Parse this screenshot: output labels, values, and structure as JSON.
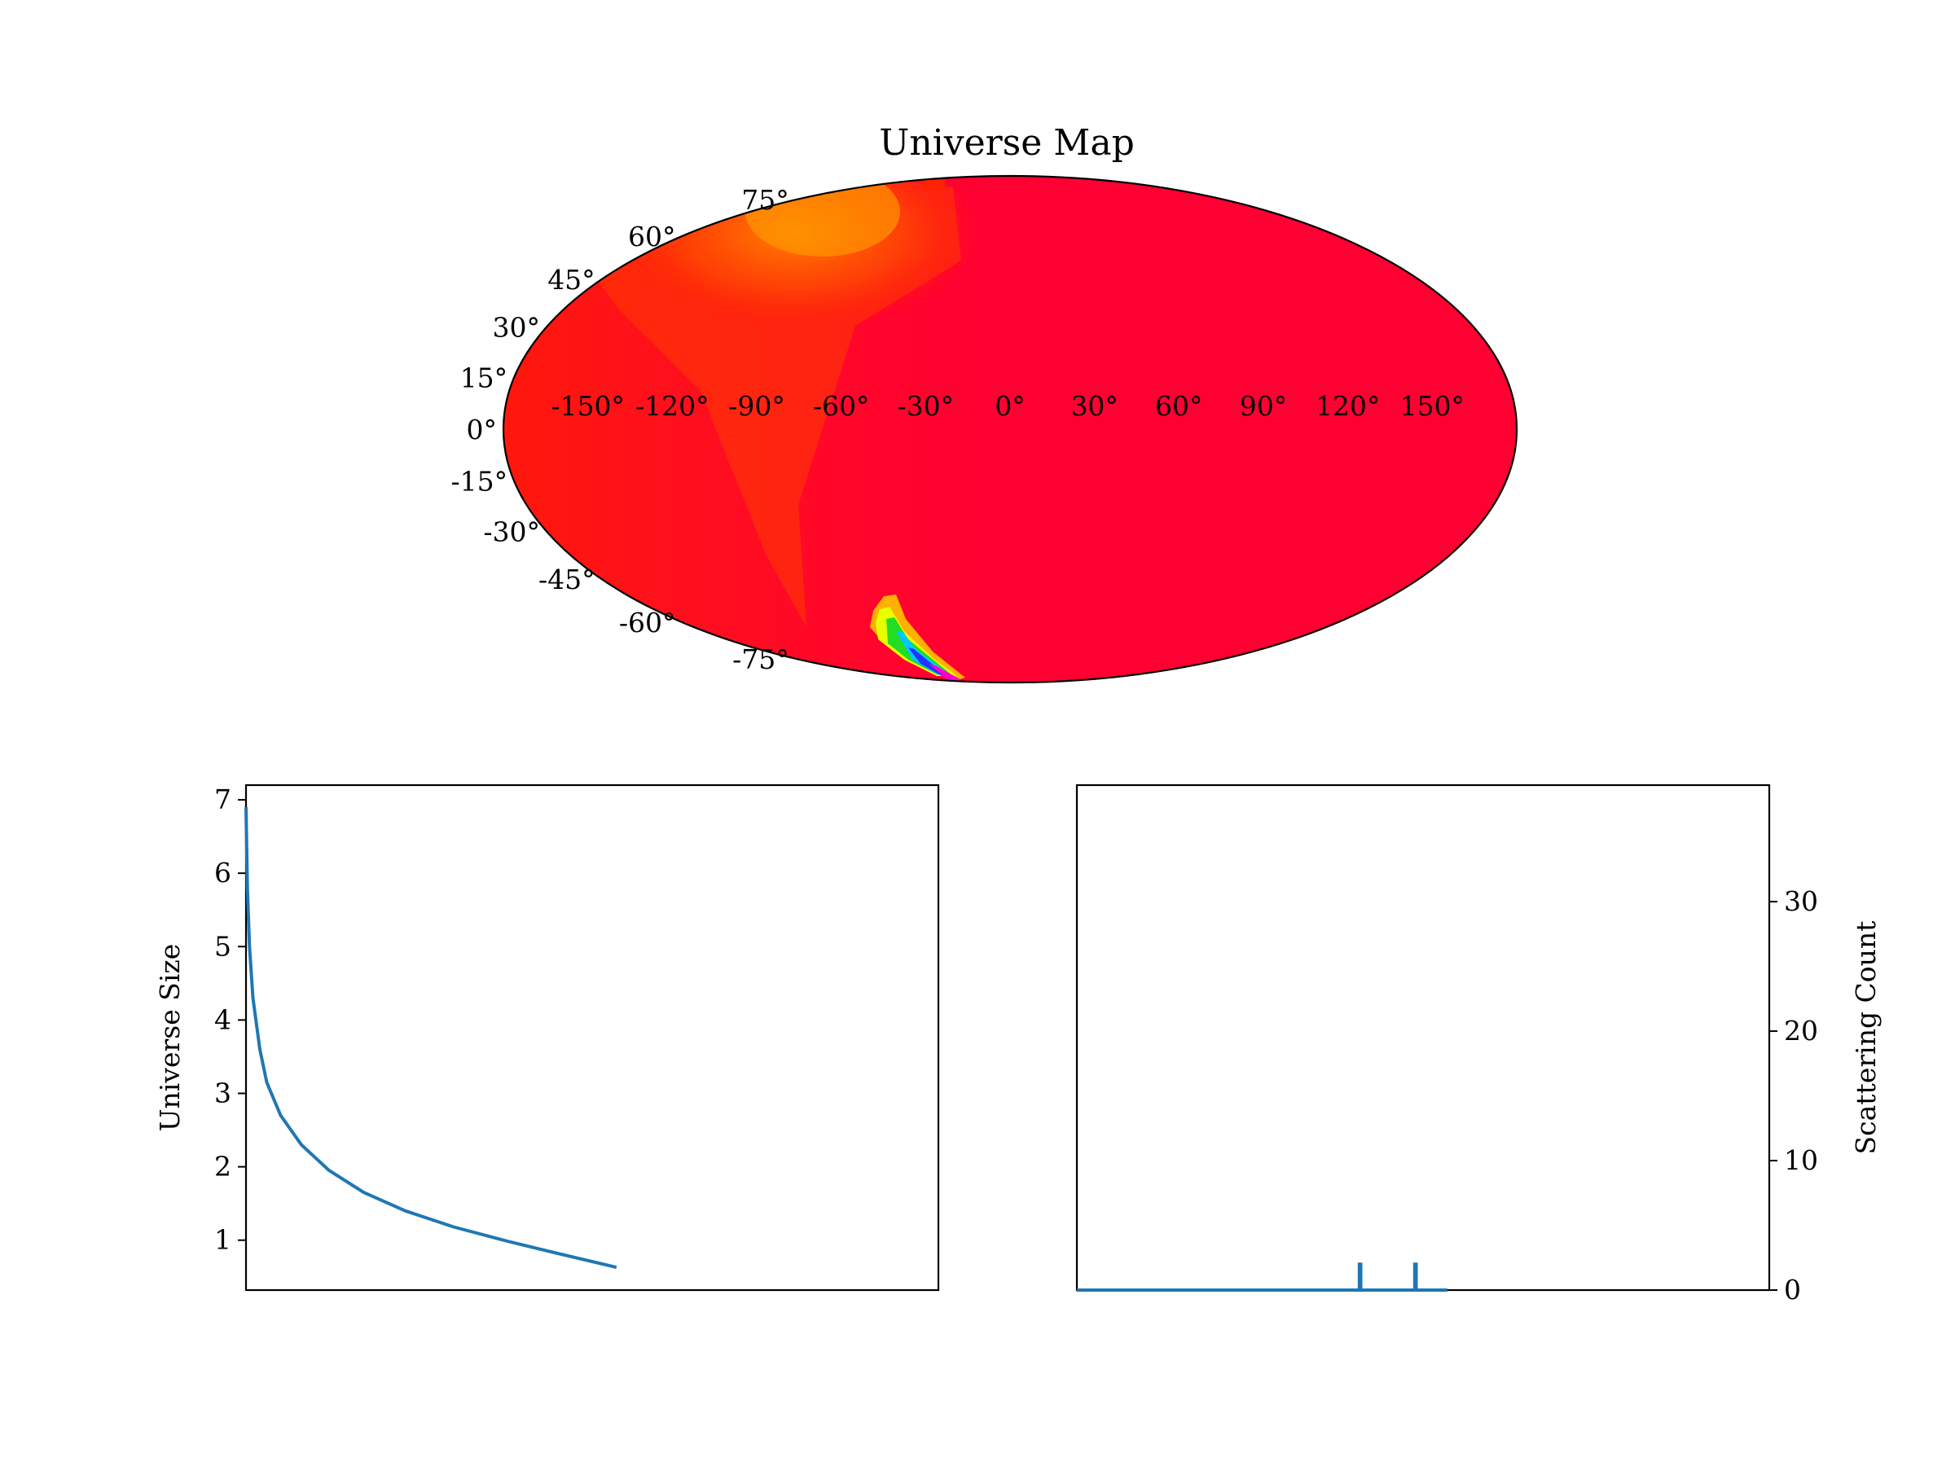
{
  "chart_data": [
    {
      "type": "heatmap",
      "projection": "mollweide",
      "title": "Universe Map",
      "longitude_ticks": [
        "-150°",
        "-120°",
        "-90°",
        "-60°",
        "-30°",
        "0°",
        "30°",
        "60°",
        "90°",
        "120°",
        "150°"
      ],
      "latitude_ticks": [
        "75°",
        "60°",
        "45°",
        "30°",
        "15°",
        "0°",
        "-15°",
        "-30°",
        "-45°",
        "-60°",
        "-75°"
      ],
      "longitude_values": [
        -150,
        -120,
        -90,
        -60,
        -30,
        0,
        30,
        60,
        90,
        120,
        150
      ],
      "latitude_values": [
        75,
        60,
        45,
        30,
        15,
        0,
        -15,
        -30,
        -45,
        -60,
        -75
      ],
      "colormap": "gist_rainbow",
      "base_color": "#ff0033",
      "features": [
        {
          "kind": "warm-band",
          "color": "#ff6a00",
          "lon_range": [
            -110,
            -40
          ],
          "lat_range": [
            20,
            90
          ]
        },
        {
          "kind": "hotspot",
          "lon": -35,
          "lat": -72,
          "colors": [
            "#ffee00",
            "#22dd00",
            "#00ccff",
            "#2233ff",
            "#ff00cc"
          ]
        }
      ]
    },
    {
      "type": "line",
      "ylabel": "Universe Size",
      "yticks": [
        1,
        2,
        3,
        4,
        5,
        6,
        7
      ],
      "ylim": [
        0.32,
        7.2
      ],
      "xlim": [
        0,
        1
      ],
      "x_ticks_shown": false,
      "grid": false,
      "line_color": "#1f77b4",
      "series": [
        {
          "x": [
            0.0,
            0.002,
            0.005,
            0.01,
            0.02,
            0.03,
            0.05,
            0.08,
            0.12,
            0.17,
            0.23,
            0.3,
            0.38,
            0.45,
            0.535
          ],
          "y": [
            6.9,
            5.8,
            5.0,
            4.3,
            3.6,
            3.15,
            2.7,
            2.3,
            1.95,
            1.65,
            1.4,
            1.18,
            0.98,
            0.82,
            0.63
          ]
        }
      ]
    },
    {
      "type": "line",
      "ylabel": "Scattering Count",
      "yaxis_side": "right",
      "yticks": [
        0,
        10,
        20,
        30
      ],
      "ylim": [
        0,
        39
      ],
      "xlim": [
        0,
        1
      ],
      "x_ticks_shown": false,
      "grid": false,
      "line_color": "#1f77b4",
      "series": [
        {
          "x": [
            0.0,
            0.408,
            0.408,
            0.41,
            0.41,
            0.488,
            0.488,
            0.49,
            0.49,
            0.535
          ],
          "y": [
            0,
            0,
            2,
            2,
            0,
            0,
            2,
            2,
            0,
            0
          ]
        }
      ]
    }
  ]
}
